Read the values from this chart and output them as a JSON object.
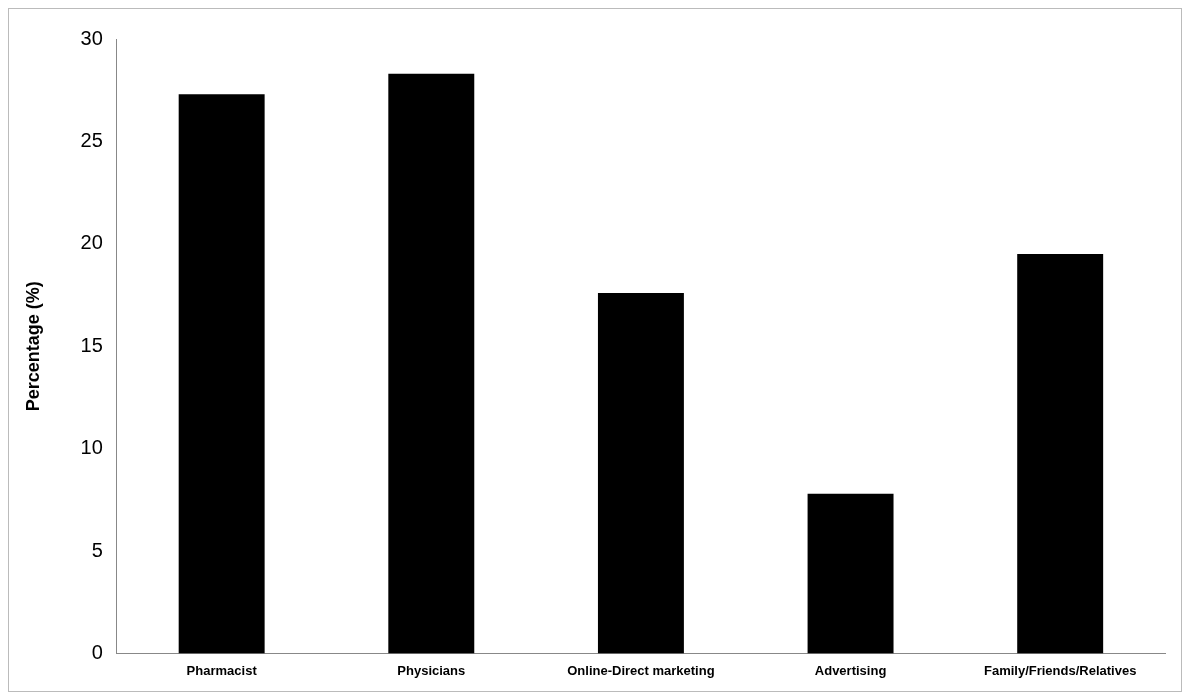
{
  "chart_data": {
    "type": "bar",
    "ylabel": "Percentage (%)",
    "categories": [
      "Pharmacist",
      "Physicians",
      "Online-Direct marketing",
      "Advertising",
      "Family/Friends/Relatives"
    ],
    "values": [
      27.3,
      28.3,
      17.6,
      7.8,
      19.5
    ],
    "color": "#000000",
    "ylim": [
      0,
      30
    ],
    "yticks": [
      0,
      5,
      10,
      15,
      20,
      25,
      30
    ],
    "grid": false,
    "legend": false
  }
}
